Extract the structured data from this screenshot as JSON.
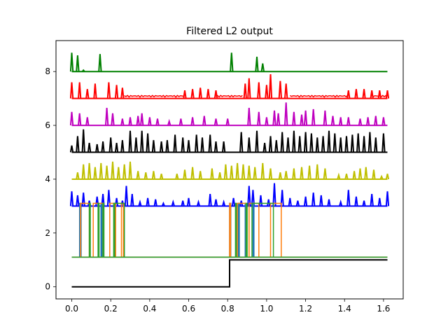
{
  "chart_data": {
    "type": "line",
    "title": "Filtered L2 output",
    "xlabel": "",
    "ylabel": "",
    "xlim": [
      -0.081,
      1.701
    ],
    "ylim": [
      -0.45,
      9.15
    ],
    "x_ticks": [
      0.0,
      0.2,
      0.4,
      0.6,
      0.8,
      1.0,
      1.2,
      1.4,
      1.6
    ],
    "x_tick_labels": [
      "0.0",
      "0.2",
      "0.4",
      "0.6",
      "0.8",
      "1.0",
      "1.2",
      "1.4",
      "1.6"
    ],
    "y_ticks": [
      0,
      2,
      4,
      6,
      8
    ],
    "y_tick_labels": [
      "0",
      "2",
      "4",
      "6",
      "8"
    ],
    "grid": false,
    "legend": "none",
    "series": [
      {
        "color": "#008000",
        "kind": "spikes",
        "baseline": 8.0,
        "spikes": [
          [
            0.0,
            8.7
          ],
          [
            0.03,
            8.6
          ],
          [
            0.06,
            8.05
          ],
          [
            0.145,
            8.65
          ],
          [
            0.82,
            8.7
          ],
          [
            0.95,
            8.55
          ],
          [
            0.98,
            8.3
          ]
        ]
      },
      {
        "color": "#ff0000",
        "kind": "noisy",
        "baseline": 7.0,
        "spikes": [
          [
            0.0,
            7.6
          ],
          [
            0.04,
            7.6
          ],
          [
            0.08,
            7.35
          ],
          [
            0.12,
            7.55
          ],
          [
            0.19,
            7.6
          ],
          [
            0.23,
            7.5
          ],
          [
            0.26,
            7.4
          ],
          [
            0.58,
            7.3
          ],
          [
            0.62,
            7.35
          ],
          [
            0.66,
            7.4
          ],
          [
            0.7,
            7.35
          ],
          [
            0.74,
            7.3
          ],
          [
            0.89,
            7.55
          ],
          [
            0.91,
            7.75
          ],
          [
            0.96,
            7.6
          ],
          [
            1.0,
            7.5
          ],
          [
            1.02,
            7.9
          ],
          [
            1.07,
            7.65
          ],
          [
            1.1,
            7.55
          ],
          [
            1.42,
            7.3
          ],
          [
            1.46,
            7.35
          ],
          [
            1.5,
            7.35
          ],
          [
            1.54,
            7.3
          ],
          [
            1.58,
            7.3
          ],
          [
            1.62,
            7.3
          ]
        ]
      },
      {
        "color": "#bf00bf",
        "kind": "spikes",
        "baseline": 6.0,
        "spikes": [
          [
            0.0,
            6.5
          ],
          [
            0.04,
            6.45
          ],
          [
            0.08,
            6.3
          ],
          [
            0.18,
            6.65
          ],
          [
            0.21,
            6.45
          ],
          [
            0.26,
            6.25
          ],
          [
            0.3,
            6.3
          ],
          [
            0.34,
            6.35
          ],
          [
            0.36,
            6.45
          ],
          [
            0.4,
            6.3
          ],
          [
            0.44,
            6.25
          ],
          [
            0.5,
            6.15
          ],
          [
            0.56,
            6.25
          ],
          [
            0.62,
            6.3
          ],
          [
            0.68,
            6.35
          ],
          [
            0.74,
            6.25
          ],
          [
            0.8,
            6.25
          ],
          [
            0.91,
            6.65
          ],
          [
            0.96,
            6.5
          ],
          [
            1.0,
            6.3
          ],
          [
            1.04,
            6.55
          ],
          [
            1.06,
            6.45
          ],
          [
            1.1,
            6.85
          ],
          [
            1.14,
            6.5
          ],
          [
            1.18,
            6.4
          ],
          [
            1.2,
            6.55
          ],
          [
            1.24,
            6.6
          ],
          [
            1.3,
            6.55
          ],
          [
            1.34,
            6.35
          ],
          [
            1.38,
            6.3
          ],
          [
            1.42,
            6.3
          ],
          [
            1.48,
            6.25
          ],
          [
            1.52,
            6.3
          ],
          [
            1.56,
            6.35
          ],
          [
            1.6,
            6.3
          ]
        ]
      },
      {
        "color": "#000000",
        "kind": "spikes",
        "baseline": 5.0,
        "spikes": [
          [
            0.0,
            5.25
          ],
          [
            0.03,
            5.6
          ],
          [
            0.06,
            5.85
          ],
          [
            0.09,
            5.35
          ],
          [
            0.13,
            5.3
          ],
          [
            0.16,
            5.4
          ],
          [
            0.2,
            5.55
          ],
          [
            0.23,
            5.35
          ],
          [
            0.26,
            5.45
          ],
          [
            0.3,
            5.8
          ],
          [
            0.33,
            5.55
          ],
          [
            0.36,
            5.8
          ],
          [
            0.39,
            5.7
          ],
          [
            0.42,
            5.45
          ],
          [
            0.46,
            5.4
          ],
          [
            0.49,
            5.45
          ],
          [
            0.53,
            5.65
          ],
          [
            0.57,
            5.55
          ],
          [
            0.6,
            5.45
          ],
          [
            0.64,
            5.65
          ],
          [
            0.67,
            5.55
          ],
          [
            0.71,
            5.65
          ],
          [
            0.74,
            5.4
          ],
          [
            0.78,
            5.4
          ],
          [
            0.87,
            5.75
          ],
          [
            0.91,
            5.55
          ],
          [
            0.95,
            5.8
          ],
          [
            0.99,
            5.35
          ],
          [
            1.02,
            5.6
          ],
          [
            1.05,
            5.45
          ],
          [
            1.08,
            5.75
          ],
          [
            1.11,
            5.55
          ],
          [
            1.14,
            5.8
          ],
          [
            1.17,
            5.6
          ],
          [
            1.2,
            5.75
          ],
          [
            1.23,
            5.7
          ],
          [
            1.26,
            5.55
          ],
          [
            1.29,
            5.6
          ],
          [
            1.32,
            5.8
          ],
          [
            1.35,
            5.7
          ],
          [
            1.38,
            5.55
          ],
          [
            1.41,
            5.6
          ],
          [
            1.44,
            5.65
          ],
          [
            1.47,
            5.7
          ],
          [
            1.5,
            5.6
          ],
          [
            1.53,
            5.75
          ],
          [
            1.56,
            5.55
          ],
          [
            1.6,
            5.7
          ]
        ]
      },
      {
        "color": "#bfbf00",
        "kind": "spikes",
        "baseline": 4.0,
        "spikes": [
          [
            0.03,
            4.25
          ],
          [
            0.06,
            4.55
          ],
          [
            0.09,
            4.6
          ],
          [
            0.12,
            4.45
          ],
          [
            0.15,
            4.6
          ],
          [
            0.18,
            4.5
          ],
          [
            0.21,
            4.65
          ],
          [
            0.24,
            4.45
          ],
          [
            0.27,
            4.55
          ],
          [
            0.3,
            4.65
          ],
          [
            0.34,
            4.3
          ],
          [
            0.38,
            4.25
          ],
          [
            0.42,
            4.3
          ],
          [
            0.46,
            4.2
          ],
          [
            0.54,
            4.2
          ],
          [
            0.58,
            4.35
          ],
          [
            0.62,
            4.45
          ],
          [
            0.66,
            4.3
          ],
          [
            0.72,
            4.4
          ],
          [
            0.76,
            4.25
          ],
          [
            0.79,
            4.55
          ],
          [
            0.82,
            4.5
          ],
          [
            0.85,
            4.6
          ],
          [
            0.88,
            4.55
          ],
          [
            0.91,
            4.5
          ],
          [
            0.94,
            4.45
          ],
          [
            0.98,
            4.6
          ],
          [
            1.02,
            4.4
          ],
          [
            1.07,
            4.25
          ],
          [
            1.1,
            4.3
          ],
          [
            1.14,
            4.4
          ],
          [
            1.18,
            4.45
          ],
          [
            1.22,
            4.5
          ],
          [
            1.26,
            4.55
          ],
          [
            1.3,
            4.4
          ],
          [
            1.37,
            4.15
          ],
          [
            1.41,
            4.2
          ],
          [
            1.45,
            4.3
          ],
          [
            1.48,
            4.4
          ],
          [
            1.51,
            4.45
          ],
          [
            1.55,
            4.35
          ],
          [
            1.59,
            4.1
          ],
          [
            1.62,
            4.2
          ]
        ]
      },
      {
        "color": "#0000ff",
        "kind": "spikes",
        "baseline": 3.0,
        "spikes": [
          [
            0.0,
            3.55
          ],
          [
            0.03,
            3.4
          ],
          [
            0.06,
            3.5
          ],
          [
            0.09,
            3.2
          ],
          [
            0.13,
            3.35
          ],
          [
            0.16,
            3.45
          ],
          [
            0.19,
            3.6
          ],
          [
            0.23,
            3.3
          ],
          [
            0.26,
            3.2
          ],
          [
            0.28,
            3.75
          ],
          [
            0.31,
            3.45
          ],
          [
            0.35,
            3.15
          ],
          [
            0.39,
            3.3
          ],
          [
            0.43,
            3.25
          ],
          [
            0.47,
            3.1
          ],
          [
            0.52,
            3.15
          ],
          [
            0.57,
            3.2
          ],
          [
            0.6,
            3.3
          ],
          [
            0.65,
            3.15
          ],
          [
            0.71,
            3.45
          ],
          [
            0.74,
            3.25
          ],
          [
            0.78,
            3.15
          ],
          [
            0.83,
            3.3
          ],
          [
            0.87,
            3.2
          ],
          [
            0.91,
            3.75
          ],
          [
            0.93,
            3.6
          ],
          [
            0.97,
            3.4
          ],
          [
            1.01,
            3.25
          ],
          [
            1.04,
            3.85
          ],
          [
            1.08,
            3.6
          ],
          [
            1.12,
            3.3
          ],
          [
            1.16,
            3.2
          ],
          [
            1.2,
            3.35
          ],
          [
            1.24,
            3.5
          ],
          [
            1.28,
            3.4
          ],
          [
            1.32,
            3.25
          ],
          [
            1.38,
            3.15
          ],
          [
            1.42,
            3.6
          ],
          [
            1.46,
            3.35
          ],
          [
            1.5,
            3.2
          ],
          [
            1.54,
            3.45
          ],
          [
            1.58,
            3.3
          ],
          [
            1.62,
            3.55
          ]
        ]
      },
      {
        "color": "#1f77b4",
        "kind": "pulses",
        "low": 1.1,
        "high": 3.1,
        "pulses": [
          [
            0.04,
            0.048
          ],
          [
            0.15,
            0.155
          ],
          [
            0.81,
            0.816
          ],
          [
            0.855,
            0.86
          ],
          [
            0.89,
            0.895
          ],
          [
            0.93,
            0.935
          ]
        ]
      },
      {
        "color": "#ff7f0e",
        "kind": "pulses",
        "low": 1.1,
        "high": 3.1,
        "pulses": [
          [
            0.045,
            0.09
          ],
          [
            0.11,
            0.16
          ],
          [
            0.195,
            0.225
          ],
          [
            0.255,
            0.265
          ],
          [
            0.81,
            0.815
          ],
          [
            0.85,
            0.895
          ],
          [
            0.91,
            0.96
          ],
          [
            1.02,
            1.075
          ]
        ]
      },
      {
        "color": "#2ca02c",
        "kind": "pulses",
        "low": 1.1,
        "high": 3.1,
        "pulses": [
          [
            0.09,
            0.095
          ],
          [
            0.135,
            0.14
          ],
          [
            0.16,
            0.165
          ],
          [
            0.215,
            0.22
          ],
          [
            0.22,
            0.27
          ],
          [
            0.84,
            0.845
          ],
          [
            0.895,
            0.9
          ],
          [
            0.925,
            1.035
          ]
        ]
      },
      {
        "color": "#000000",
        "kind": "step",
        "low": 0.0,
        "high": 1.0,
        "step_x": 0.81,
        "x_start": 0.0,
        "x_end": 1.62
      }
    ]
  }
}
